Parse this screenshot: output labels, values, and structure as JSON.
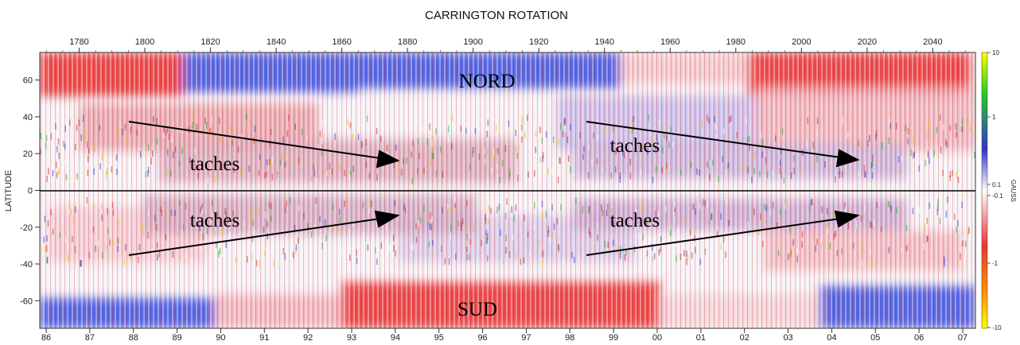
{
  "chart_data": {
    "type": "heatmap",
    "title": "CARRINGTON ROTATION",
    "ylabel": "LATITUDE",
    "colorbar_label": "GAUSS",
    "top_axis_ticks": [
      "1780",
      "1800",
      "1820",
      "1840",
      "1860",
      "1880",
      "1900",
      "1920",
      "1940",
      "1960",
      "1980",
      "2000",
      "2020",
      "2040"
    ],
    "bottom_axis_ticks": [
      "86",
      "87",
      "88",
      "89",
      "90",
      "91",
      "92",
      "93",
      "94",
      "95",
      "96",
      "97",
      "98",
      "99",
      "00",
      "01",
      "02",
      "03",
      "04",
      "05",
      "06",
      "07"
    ],
    "y_ticks": [
      "60",
      "40",
      "20",
      "0",
      "-20",
      "-40",
      "-60"
    ],
    "colorbar_ticks": [
      "10",
      "1",
      "0.1",
      "-0.1",
      "-1",
      "-10"
    ],
    "colorbar_colors": [
      "#ffff00",
      "#22cc22",
      "#3333cc",
      "#ffffff",
      "#ee3333",
      "#ff9900",
      "#ffff00"
    ],
    "annotations": {
      "north": "NORD",
      "south": "SUD",
      "spots": [
        "taches",
        "taches",
        "taches",
        "taches"
      ]
    },
    "colors": {
      "positive": "#3a4fe0",
      "negative": "#e83030",
      "neutral": "#ffffff"
    },
    "axis_ranges": {
      "latitude": [
        -75,
        75
      ],
      "top_axis": [
        1768,
        2053
      ],
      "bottom_axis_years": [
        1986,
        2007
      ]
    }
  }
}
